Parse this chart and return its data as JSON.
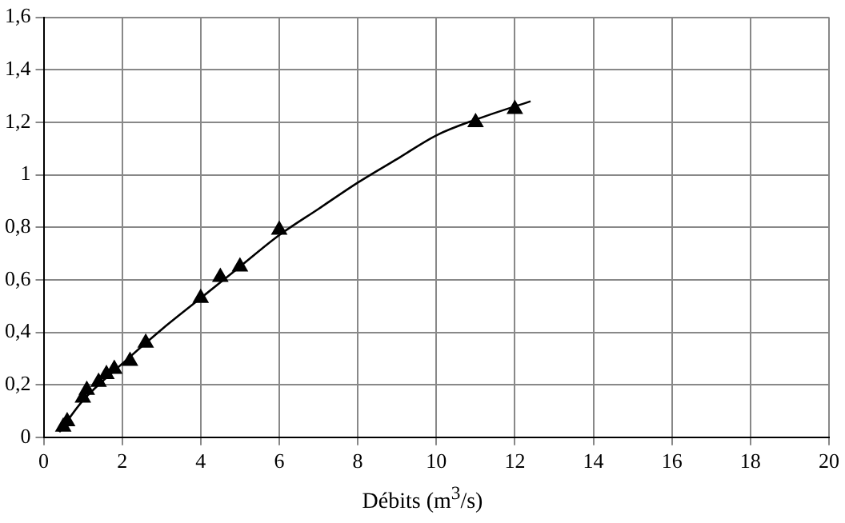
{
  "chart_data": {
    "type": "scatter",
    "xlabel": "Débits (m$^{3}$/s)",
    "xlim": [
      0,
      20
    ],
    "xticks": [
      0,
      2,
      4,
      6,
      8,
      10,
      12,
      14,
      16,
      18,
      20
    ],
    "ylim": [
      0,
      1.6
    ],
    "yticks": [
      0,
      {
        "value": 0.2,
        "label": "0,2"
      },
      {
        "value": 0.4,
        "label": "0,4"
      },
      {
        "value": 0.6,
        "label": "0,6"
      },
      {
        "value": 0.8,
        "label": "0,8"
      },
      1,
      {
        "value": 1.2,
        "label": "1,2"
      },
      {
        "value": 1.4,
        "label": "1,4"
      },
      {
        "value": 1.6,
        "label": "1,6"
      }
    ],
    "grid": true,
    "marker": "triangle",
    "series": [
      {
        "color": "#000000",
        "x": [
          0.5,
          0.6,
          1.0,
          1.1,
          1.4,
          1.6,
          1.8,
          2.2,
          2.6,
          4,
          4.5,
          5,
          6,
          11,
          12
        ],
        "values": [
          0.04,
          0.06,
          0.15,
          0.18,
          0.21,
          0.24,
          0.26,
          0.29,
          0.36,
          0.53,
          0.61,
          0.65,
          0.79,
          1.2,
          1.25
        ]
      },
      {
        "type": "line",
        "color": "#000000",
        "marker": "none",
        "x": [
          0.4,
          1,
          2,
          3,
          4,
          5,
          6,
          7,
          8,
          9,
          10,
          11,
          12.4
        ],
        "values": [
          0.02,
          0.14,
          0.28,
          0.41,
          0.53,
          0.65,
          0.77,
          0.87,
          0.97,
          1.06,
          1.15,
          1.21,
          1.28
        ]
      }
    ]
  }
}
